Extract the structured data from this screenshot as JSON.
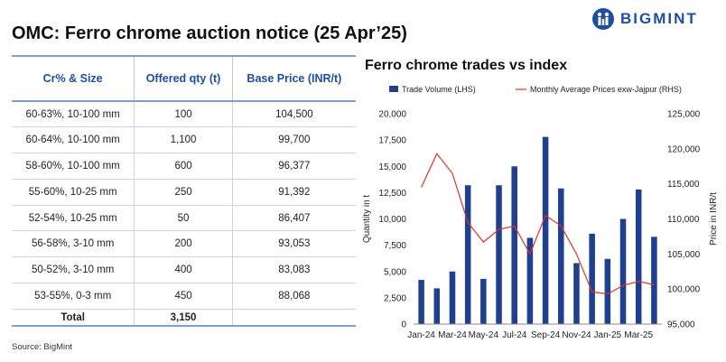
{
  "header": {
    "title": "OMC: Ferro chrome auction notice (25 Apr’25)",
    "logo_text": "BIGMINT"
  },
  "table": {
    "headers": [
      "Cr% & Size",
      "Offered qty (t)",
      "Base Price (INR/t)"
    ],
    "rows": [
      [
        "60-63%, 10-100 mm",
        "100",
        "104,500"
      ],
      [
        "60-64%, 10-100 mm",
        "1,100",
        "99,700"
      ],
      [
        "58-60%, 10-100 mm",
        "600",
        "96,377"
      ],
      [
        "55-60%, 10-25 mm",
        "250",
        "91,392"
      ],
      [
        "52-54%, 10-25 mm",
        "50",
        "86,407"
      ],
      [
        "56-58%, 3-10 mm",
        "200",
        "93,053"
      ],
      [
        "50-52%, 3-10 mm",
        "400",
        "83,083"
      ],
      [
        "53-55%, 0-3 mm",
        "450",
        "88,068"
      ]
    ],
    "total": [
      "Total",
      "3,150",
      ""
    ]
  },
  "source": "Source: BigMint",
  "chart_data": {
    "type": "bar",
    "title": "Ferro chrome trades vs index",
    "categories": [
      "Jan-24",
      "Feb-24",
      "Mar-24",
      "Apr-24",
      "May-24",
      "Jun-24",
      "Jul-24",
      "Aug-24",
      "Sep-24",
      "Oct-24",
      "Nov-24",
      "Dec-24",
      "Jan-25",
      "Feb-25",
      "Mar-25",
      "Apr-25"
    ],
    "x_tick_labels": [
      "Jan-24",
      "Mar-24",
      "May-24",
      "Jul-24",
      "Sep-24",
      "Nov-24",
      "Jan-25",
      "Mar-25"
    ],
    "series": [
      {
        "name": "Trade Volume (LHS)",
        "kind": "bar",
        "axis": "left",
        "color": "#1f3f8f",
        "values": [
          4200,
          3400,
          5000,
          13200,
          4300,
          13200,
          15000,
          8200,
          17800,
          12900,
          5800,
          8600,
          6200,
          10000,
          12800,
          8300
        ]
      },
      {
        "name": "Monthly Average Prices exw-Jajpur (RHS)",
        "kind": "line",
        "axis": "right",
        "color": "#d9342b",
        "values": [
          114500,
          119300,
          116500,
          109500,
          106700,
          108500,
          109000,
          105000,
          110500,
          109000,
          105000,
          99600,
          99300,
          100500,
          101100,
          100600
        ]
      }
    ],
    "ylabel": "Quantity in t",
    "y2label": "Price in INR/t",
    "ylim": [
      0,
      20000
    ],
    "y_ticks": [
      0,
      2500,
      5000,
      7500,
      10000,
      12500,
      15000,
      17500,
      20000
    ],
    "y_tick_labels": [
      "0",
      "2,500",
      "5,000",
      "7,500",
      "10,000",
      "12,500",
      "15,000",
      "17,500",
      "20,000"
    ],
    "y2lim": [
      95000,
      125000
    ],
    "y2_ticks": [
      95000,
      100000,
      105000,
      110000,
      115000,
      120000,
      125000
    ],
    "y2_tick_labels": [
      "95,000",
      "100,000",
      "105,000",
      "110,000",
      "115,000",
      "120,000",
      "125,000"
    ],
    "legend": "top",
    "grid": false
  }
}
